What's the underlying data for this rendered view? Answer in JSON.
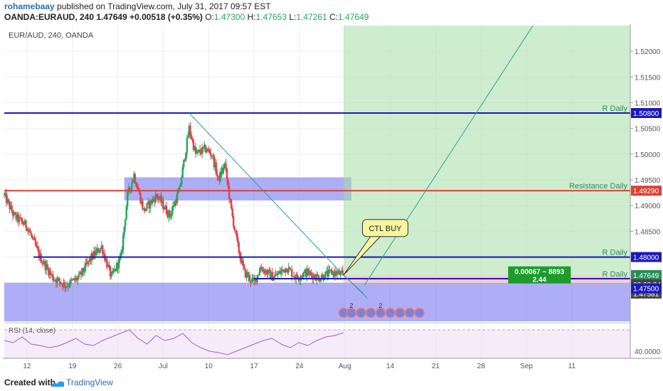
{
  "header": {
    "author": "rohamebaay",
    "published": "published on TradingView.com, July 31, 2017 09:57 EST",
    "symbol": "OANDA:EURAUD, 240",
    "last": "1.47649",
    "change": "+0.00518 (+0.35%)",
    "o_label": "O:",
    "o": "1.47300",
    "h_label": "H:",
    "h": "1.47653",
    "l_label": "L:",
    "l": "1.47261",
    "c_label": "C:",
    "c": "1.47649"
  },
  "footer": {
    "created": "Created with",
    "brand": "TradingView"
  },
  "colors": {
    "bull": "#26a65b",
    "bear": "#e0434b",
    "blue_line": "#1a1ab8",
    "red_line": "#d94133",
    "zone_blue": "#6b6bf0",
    "zone_green": "#a6dea6",
    "zone_red": "#f7c2c2",
    "rsi_fill": "#f0ddf3"
  },
  "chart_data": {
    "type": "candlestick",
    "title": "EUR/AUD, 240, OANDA",
    "ylim": [
      1.4675,
      1.525
    ],
    "y_ticks": [
      1.52,
      1.515,
      1.51,
      1.505,
      1.5,
      1.495,
      1.49,
      1.485,
      1.48,
      1.475
    ],
    "y_tick_labels": [
      "1.52000",
      "1.51500",
      "1.51000",
      "1.50500",
      "1.50000",
      "1.49500",
      "1.49000",
      "1.48500",
      "1.48000",
      "1.47500"
    ],
    "x_tick_labels": [
      "12",
      "19",
      "26",
      "Jul",
      "10",
      "17",
      "24",
      "Aug",
      "14",
      "21",
      "28",
      "Sep",
      "11"
    ],
    "x_tick_pos": [
      5,
      12,
      19,
      26,
      33,
      40,
      47,
      54,
      61,
      68,
      75,
      82,
      89
    ],
    "x_range": [
      1.5,
      98.0
    ],
    "candle_range": [
      1.5,
      53.8
    ],
    "ohlc_anchors": [
      [
        1.5,
        1.492
      ],
      [
        3.0,
        1.488
      ],
      [
        5.0,
        1.486
      ],
      [
        7.0,
        1.48
      ],
      [
        9.0,
        1.476
      ],
      [
        11.0,
        1.4745
      ],
      [
        13.0,
        1.476
      ],
      [
        15.0,
        1.48
      ],
      [
        16.5,
        1.482
      ],
      [
        18.0,
        1.476
      ],
      [
        19.5,
        1.48
      ],
      [
        20.5,
        1.492
      ],
      [
        21.5,
        1.496
      ],
      [
        23.0,
        1.489
      ],
      [
        25.0,
        1.492
      ],
      [
        27.0,
        1.488
      ],
      [
        28.5,
        1.493
      ],
      [
        30.0,
        1.505
      ],
      [
        31.0,
        1.5
      ],
      [
        32.5,
        1.501
      ],
      [
        33.5,
        1.5
      ],
      [
        34.5,
        1.495
      ],
      [
        35.5,
        1.498
      ],
      [
        36.5,
        1.489
      ],
      [
        37.5,
        1.482
      ],
      [
        38.5,
        1.477
      ],
      [
        40.0,
        1.475
      ],
      [
        41.0,
        1.478
      ],
      [
        43.0,
        1.476
      ],
      [
        45.0,
        1.478
      ],
      [
        46.5,
        1.476
      ],
      [
        48.0,
        1.477
      ],
      [
        50.0,
        1.476
      ],
      [
        52.0,
        1.477
      ],
      [
        53.8,
        1.47649
      ]
    ],
    "hlines": [
      {
        "y": 1.508,
        "x0": 1.5,
        "x1": 98.0,
        "color": "#1a1ab8",
        "label": "R Daily",
        "tag": "1.50800"
      },
      {
        "y": 1.4929,
        "x0": 1.5,
        "x1": 98.0,
        "color": "#d94133",
        "label": "Resistance Daily",
        "tag": "1.49290"
      },
      {
        "y": 1.48,
        "x0": 6.0,
        "x1": 98.0,
        "color": "#1a1ab8",
        "label": "R Daily",
        "tag": "1.48000"
      },
      {
        "y": 1.4758,
        "x0": 40.0,
        "x1": 98.0,
        "color": "#1a1ab8",
        "label": "R Daily",
        "tag": ""
      }
    ],
    "zones": [
      {
        "kind": "blue-box",
        "x0": 20.0,
        "x1": 55.0,
        "y0": 1.491,
        "y1": 1.4955
      },
      {
        "kind": "blue-box",
        "x0": 1.5,
        "x1": 98.0,
        "y0": 1.4675,
        "y1": 1.475
      },
      {
        "kind": "green-target",
        "x0": 53.8,
        "x1": 98.0,
        "y0": 1.47649,
        "y1": 1.525
      },
      {
        "kind": "red-stop",
        "x0": 53.8,
        "x1": 98.0,
        "y0": 1.475,
        "y1": 1.47649
      }
    ],
    "trendlines": [
      {
        "from": [
          30.0,
          1.508
        ],
        "to": [
          53.8,
          1.47649
        ]
      },
      {
        "from": [
          53.8,
          1.47649
        ],
        "to": [
          57.5,
          1.472
        ]
      },
      {
        "from": [
          57.0,
          1.4745
        ],
        "to": [
          83.0,
          1.525
        ]
      },
      {
        "from": [
          53.8,
          1.47649
        ],
        "to": [
          56.8,
          1.473
        ]
      }
    ],
    "annotation": {
      "text": "CTL   BUY",
      "x": 60.0,
      "y": 1.4855,
      "pointer": [
        53.8,
        1.47649
      ]
    },
    "position_box": {
      "text": "0.00067 ~ 8893",
      "text2": "2.44",
      "x": 84.0,
      "y": 1.4768
    },
    "price_tags": [
      {
        "y": 1.47649,
        "text": "1.47649"
      },
      {
        "y": 1.4755,
        "text": "02:03:24"
      },
      {
        "y": 1.4746,
        "text": "1.47581"
      },
      {
        "y": 1.475,
        "text": "1.47500"
      }
    ],
    "event_markers": [
      {
        "x": 53.8,
        "label": ""
      },
      {
        "x": 55.0,
        "label": "2"
      },
      {
        "x": 56.5,
        "label": ""
      },
      {
        "x": 58.0,
        "label": ""
      },
      {
        "x": 59.5,
        "label": "2"
      },
      {
        "x": 61.0,
        "label": ""
      },
      {
        "x": 62.5,
        "label": ""
      },
      {
        "x": 64.0,
        "label": ""
      },
      {
        "x": 65.5,
        "label": ""
      }
    ],
    "rsi": {
      "label": "RSI (14, close)",
      "ylim": [
        30,
        80
      ],
      "ticks": [
        40
      ],
      "tick_labels": [
        "40.0000"
      ],
      "band": [
        30,
        70
      ],
      "values": [
        55,
        52,
        60,
        50,
        48,
        45,
        47,
        52,
        58,
        50,
        48,
        55,
        60,
        65,
        70,
        58,
        50,
        62,
        55,
        58,
        65,
        52,
        45,
        40,
        38,
        35,
        40,
        45,
        50,
        55,
        58,
        50,
        45,
        52,
        48,
        55,
        60,
        62,
        66
      ]
    }
  }
}
